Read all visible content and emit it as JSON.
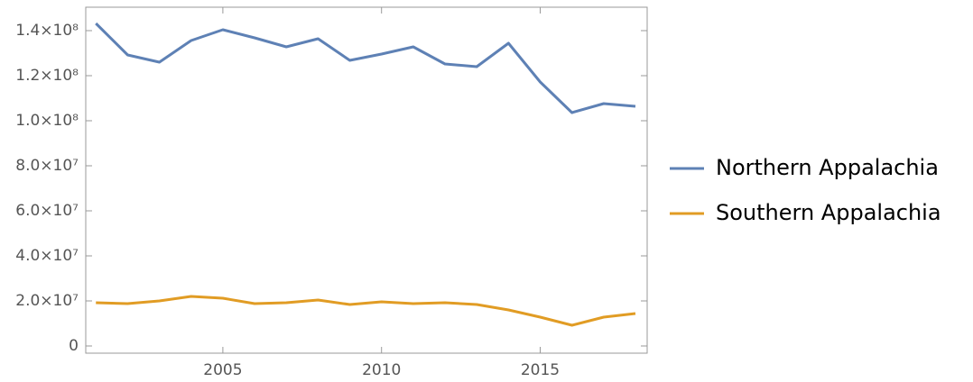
{
  "chart_data": {
    "type": "line",
    "x": [
      2001,
      2002,
      2003,
      2004,
      2005,
      2006,
      2007,
      2008,
      2009,
      2010,
      2011,
      2012,
      2013,
      2014,
      2015,
      2016,
      2017,
      2018
    ],
    "series": [
      {
        "name": "Northern Appalachia",
        "color": "#5e81b5",
        "values": [
          143200000,
          129200000,
          126000000,
          135600000,
          140400000,
          136800000,
          132800000,
          136400000,
          126800000,
          129600000,
          132800000,
          125200000,
          124000000,
          134400000,
          117200000,
          103600000,
          107600000,
          106400000
        ]
      },
      {
        "name": "Southern Appalachia",
        "color": "#e19c24",
        "values": [
          19200000,
          18800000,
          20000000,
          22000000,
          21200000,
          18800000,
          19200000,
          20400000,
          18400000,
          19600000,
          18800000,
          19200000,
          18400000,
          16000000,
          12800000,
          9200000,
          12800000,
          14400000
        ]
      }
    ],
    "xlim": [
      2000.68,
      2018.37
    ],
    "xticks": [
      2005,
      2010,
      2015
    ],
    "ylim": [
      -3200000,
      150400000
    ],
    "yticks": [
      0,
      {
        "value": 20000000,
        "label": "2.0×10⁷"
      },
      {
        "value": 40000000,
        "label": "4.0×10⁷"
      },
      {
        "value": 60000000,
        "label": "6.0×10⁷"
      },
      {
        "value": 80000000,
        "label": "8.0×10⁷"
      },
      {
        "value": 100000000,
        "label": "1.0×10⁸"
      },
      {
        "value": 120000000,
        "label": "1.2×10⁸"
      },
      {
        "value": 140000000,
        "label": "1.4×10⁸"
      }
    ],
    "legend": "right"
  }
}
